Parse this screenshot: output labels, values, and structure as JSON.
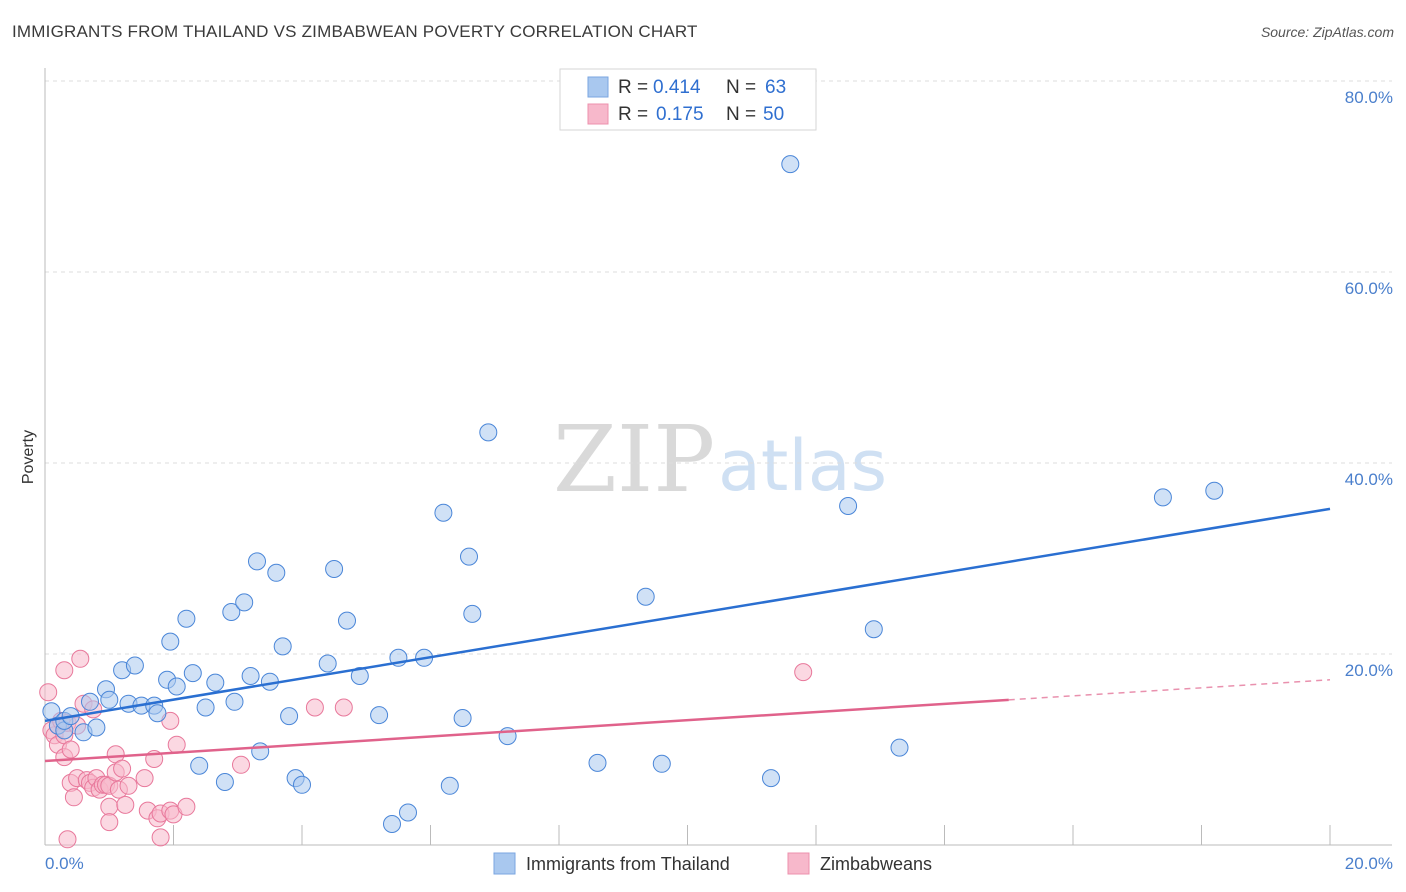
{
  "header": {
    "title": "IMMIGRANTS FROM THAILAND VS ZIMBABWEAN POVERTY CORRELATION CHART",
    "source": "Source: ZipAtlas.com"
  },
  "watermark": {
    "zip": "ZIP",
    "atlas": "atlas"
  },
  "legend": {
    "rows": [
      {
        "r_label": "R =",
        "r_value": "0.414",
        "n_label": "N =",
        "n_value": "63",
        "color": "#a9c8ef"
      },
      {
        "r_label": "R =",
        "r_value": "0.175",
        "n_label": "N =",
        "n_value": "50",
        "color": "#f7b8cb"
      }
    ]
  },
  "bottom_legend": {
    "items": [
      {
        "label": "Immigrants from Thailand",
        "color": "#a9c8ef"
      },
      {
        "label": "Zimbabweans",
        "color": "#f7b8cb"
      }
    ]
  },
  "chart_data": {
    "type": "scatter",
    "title": "IMMIGRANTS FROM THAILAND VS ZIMBABWEAN POVERTY CORRELATION CHART",
    "xlabel": "",
    "ylabel": "Poverty",
    "xlim": [
      0,
      20
    ],
    "ylim": [
      0,
      80
    ],
    "x_tick_labels": [
      "0.0%",
      "20.0%"
    ],
    "y_ticks": [
      20,
      40,
      60,
      80
    ],
    "y_tick_labels": [
      "20.0%",
      "40.0%",
      "60.0%",
      "80.0%"
    ],
    "grid": true,
    "series": [
      {
        "name": "Immigrants from Thailand",
        "color": "#4a86d8",
        "fill": "#a9c8ef",
        "line_color": "#2a6fd1",
        "trend": {
          "x0": 0,
          "y0": 13.0,
          "x1": 20,
          "y1": 35.2
        },
        "points": [
          [
            0.1,
            14.0
          ],
          [
            0.2,
            12.5
          ],
          [
            0.3,
            12.0
          ],
          [
            0.3,
            13.0
          ],
          [
            0.4,
            13.5
          ],
          [
            0.6,
            11.8
          ],
          [
            0.7,
            15.0
          ],
          [
            0.8,
            12.3
          ],
          [
            0.95,
            16.3
          ],
          [
            1.0,
            15.2
          ],
          [
            1.2,
            18.3
          ],
          [
            1.3,
            14.8
          ],
          [
            1.4,
            18.8
          ],
          [
            1.5,
            14.6
          ],
          [
            1.7,
            14.6
          ],
          [
            1.75,
            13.8
          ],
          [
            1.9,
            17.3
          ],
          [
            1.95,
            21.3
          ],
          [
            2.05,
            16.6
          ],
          [
            2.2,
            23.7
          ],
          [
            2.3,
            18.0
          ],
          [
            2.4,
            8.3
          ],
          [
            2.5,
            14.4
          ],
          [
            2.65,
            17.0
          ],
          [
            2.8,
            6.6
          ],
          [
            2.9,
            24.4
          ],
          [
            2.95,
            15.0
          ],
          [
            3.1,
            25.4
          ],
          [
            3.2,
            17.7
          ],
          [
            3.3,
            29.7
          ],
          [
            3.35,
            9.8
          ],
          [
            3.5,
            17.1
          ],
          [
            3.6,
            28.5
          ],
          [
            3.7,
            20.8
          ],
          [
            3.8,
            13.5
          ],
          [
            3.9,
            7.0
          ],
          [
            4.0,
            6.3
          ],
          [
            4.4,
            19.0
          ],
          [
            4.5,
            28.9
          ],
          [
            4.7,
            23.5
          ],
          [
            4.9,
            17.7
          ],
          [
            5.2,
            13.6
          ],
          [
            5.4,
            2.2
          ],
          [
            5.5,
            19.6
          ],
          [
            5.65,
            3.4
          ],
          [
            5.9,
            19.6
          ],
          [
            6.2,
            34.8
          ],
          [
            6.3,
            6.2
          ],
          [
            6.5,
            13.3
          ],
          [
            6.6,
            30.2
          ],
          [
            6.65,
            24.2
          ],
          [
            6.9,
            43.2
          ],
          [
            7.2,
            11.4
          ],
          [
            8.6,
            8.6
          ],
          [
            9.35,
            26.0
          ],
          [
            9.6,
            8.5
          ],
          [
            11.3,
            7.0
          ],
          [
            11.6,
            71.3
          ],
          [
            12.5,
            35.5
          ],
          [
            12.9,
            22.6
          ],
          [
            13.3,
            10.2
          ],
          [
            17.4,
            36.4
          ],
          [
            18.2,
            37.1
          ]
        ]
      },
      {
        "name": "Zimbabweans",
        "color": "#e8789b",
        "fill": "#f7b8cb",
        "line_color": "#e0628b",
        "trend": {
          "x0": 0,
          "y0": 8.8,
          "x1": 15.0,
          "y1": 15.2
        },
        "trend_dashed": {
          "x0": 15.0,
          "y0": 15.2,
          "x1": 20,
          "y1": 17.3
        },
        "points": [
          [
            0.05,
            16.0
          ],
          [
            0.1,
            12.0
          ],
          [
            0.15,
            11.5
          ],
          [
            0.2,
            12.5
          ],
          [
            0.2,
            10.5
          ],
          [
            0.25,
            13.0
          ],
          [
            0.3,
            11.5
          ],
          [
            0.3,
            9.2
          ],
          [
            0.3,
            18.3
          ],
          [
            0.35,
            12.8
          ],
          [
            0.4,
            10.0
          ],
          [
            0.4,
            6.5
          ],
          [
            0.45,
            5.0
          ],
          [
            0.5,
            7.0
          ],
          [
            0.5,
            12.5
          ],
          [
            0.55,
            19.5
          ],
          [
            0.6,
            14.8
          ],
          [
            0.65,
            6.8
          ],
          [
            0.7,
            6.5
          ],
          [
            0.75,
            14.2
          ],
          [
            0.75,
            6.0
          ],
          [
            0.8,
            7.0
          ],
          [
            0.85,
            5.8
          ],
          [
            0.9,
            6.3
          ],
          [
            0.95,
            6.3
          ],
          [
            1.0,
            6.2
          ],
          [
            1.0,
            4.0
          ],
          [
            1.0,
            2.4
          ],
          [
            1.1,
            7.6
          ],
          [
            1.1,
            9.5
          ],
          [
            1.15,
            5.8
          ],
          [
            1.2,
            8.0
          ],
          [
            1.25,
            4.2
          ],
          [
            1.3,
            6.2
          ],
          [
            1.55,
            7.0
          ],
          [
            1.6,
            3.6
          ],
          [
            1.7,
            9.0
          ],
          [
            1.75,
            2.8
          ],
          [
            1.8,
            3.3
          ],
          [
            1.95,
            13.0
          ],
          [
            1.95,
            3.6
          ],
          [
            2.0,
            3.2
          ],
          [
            2.05,
            10.5
          ],
          [
            2.2,
            4.0
          ],
          [
            3.05,
            8.4
          ],
          [
            4.2,
            14.4
          ],
          [
            4.65,
            14.4
          ],
          [
            11.8,
            18.1
          ],
          [
            1.8,
            0.8
          ],
          [
            0.35,
            0.6
          ]
        ]
      }
    ]
  }
}
